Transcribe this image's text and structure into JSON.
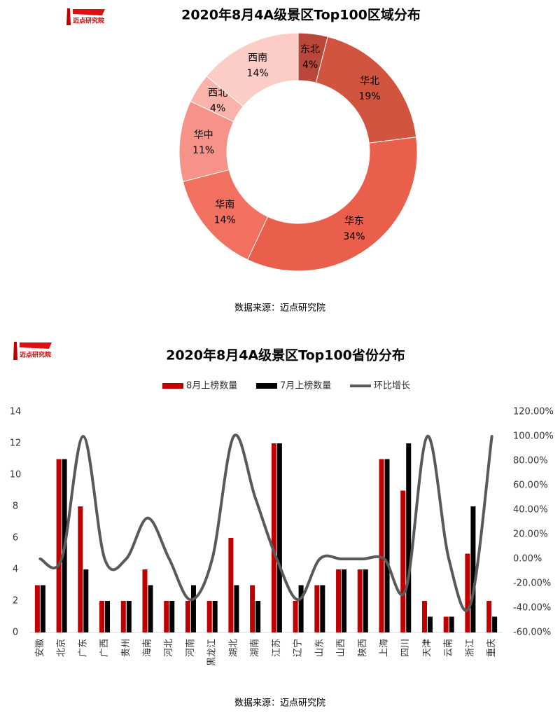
{
  "chart_data": [
    {
      "type": "pie",
      "logo_text": "迈点研究院",
      "title": "2020年8月4A级景区Top100区域分布",
      "categories": [
        "东北",
        "华北",
        "华东",
        "华南",
        "华中",
        "西北",
        "西南"
      ],
      "values": [
        4,
        19,
        34,
        14,
        11,
        4,
        14
      ],
      "value_labels": [
        "4%",
        "19%",
        "34%",
        "14%",
        "11%",
        "4%",
        "14%"
      ],
      "colors": [
        "#b9483a",
        "#d1543f",
        "#e95f4b",
        "#f2705f",
        "#f69287",
        "#f9b3ab",
        "#fcccc7"
      ],
      "source": "数据来源：迈点研究院"
    },
    {
      "type": "bar_line",
      "logo_text": "迈点研究院",
      "title": "2020年8月4A级景区Top100省份分布",
      "categories": [
        "安徽",
        "北京",
        "广东",
        "广西",
        "贵州",
        "海南",
        "河北",
        "河南",
        "黑龙江",
        "湖北",
        "湖南",
        "江苏",
        "辽宁",
        "山东",
        "山西",
        "陕西",
        "上海",
        "四川",
        "天津",
        "云南",
        "浙江",
        "重庆"
      ],
      "series": [
        {
          "name": "8月上榜数量",
          "color": "#c00000",
          "type": "bar",
          "values": [
            3,
            11,
            8,
            2,
            2,
            4,
            2,
            2,
            2,
            6,
            3,
            12,
            2,
            3,
            4,
            4,
            11,
            9,
            2,
            1,
            5,
            2
          ]
        },
        {
          "name": "7月上榜数量",
          "color": "#000000",
          "type": "bar",
          "values": [
            3,
            11,
            4,
            2,
            2,
            3,
            2,
            3,
            2,
            3,
            2,
            12,
            3,
            3,
            4,
            4,
            11,
            12,
            1,
            1,
            8,
            1
          ]
        },
        {
          "name": "环比增长",
          "color": "#595959",
          "type": "line",
          "axis": "y2",
          "values": [
            0,
            0,
            100,
            0,
            0,
            33.33,
            0,
            -33.33,
            0,
            100,
            50,
            0,
            -33.33,
            0,
            0,
            0,
            0,
            -25,
            100,
            0,
            -37.5,
            100
          ]
        }
      ],
      "ylim": [
        0,
        14
      ],
      "yticks": [
        0,
        2,
        4,
        6,
        8,
        10,
        12,
        14
      ],
      "y2lim": [
        -60,
        120
      ],
      "y2ticks": [
        {
          "value": -60,
          "label": "-60.00%"
        },
        {
          "value": -40,
          "label": "-40.00%"
        },
        {
          "value": -20,
          "label": "-20.00%"
        },
        {
          "value": 0,
          "label": "0.00%"
        },
        {
          "value": 20,
          "label": "20.00%"
        },
        {
          "value": 40,
          "label": "40.00%"
        },
        {
          "value": 60,
          "label": "60.00%"
        },
        {
          "value": 80,
          "label": "80.00%"
        },
        {
          "value": 100,
          "label": "100.00%"
        },
        {
          "value": 120,
          "label": "120.00%"
        }
      ],
      "legend": "top",
      "grid": false,
      "source": "数据来源：迈点研究院"
    }
  ]
}
